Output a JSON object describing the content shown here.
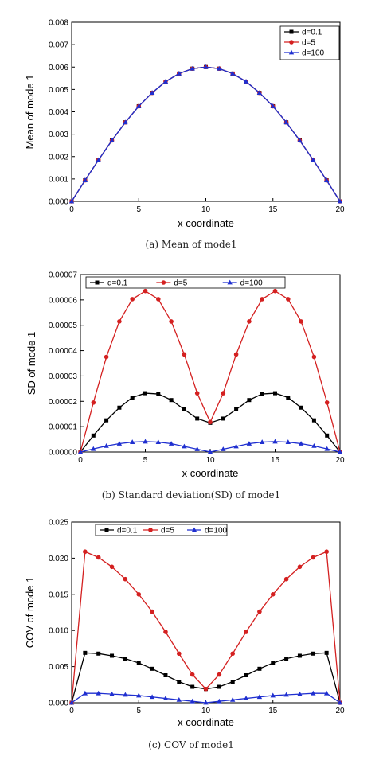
{
  "colors": {
    "d01": "#000000",
    "d5": "#d42020",
    "d100": "#1f2fd0"
  },
  "chart_data": [
    {
      "type": "line",
      "caption": "(a) Mean of mode1",
      "xlabel": "x coordinate",
      "ylabel": "Mean of mode 1",
      "xlim": [
        0,
        20
      ],
      "ylim": [
        0,
        0.008
      ],
      "x_ticks": [
        "0",
        "5",
        "10",
        "15",
        "20"
      ],
      "y_ticks": [
        "0.000",
        "0.001",
        "0.002",
        "0.003",
        "0.004",
        "0.005",
        "0.006",
        "0.007",
        "0.008"
      ],
      "legend_position": "top-right",
      "x": [
        0,
        1,
        2,
        3,
        4,
        5,
        6,
        7,
        8,
        9,
        10,
        11,
        12,
        13,
        14,
        15,
        16,
        17,
        18,
        19,
        20
      ],
      "series": [
        {
          "name": "d=0.1",
          "marker": "square",
          "values": [
            0,
            0.00094,
            0.00185,
            0.00272,
            0.00353,
            0.00425,
            0.00485,
            0.00535,
            0.00571,
            0.00593,
            0.006,
            0.00593,
            0.00571,
            0.00535,
            0.00485,
            0.00425,
            0.00353,
            0.00272,
            0.00185,
            0.00094,
            0
          ]
        },
        {
          "name": "d=5",
          "marker": "circle",
          "values": [
            0,
            0.00094,
            0.00185,
            0.00272,
            0.00353,
            0.00425,
            0.00485,
            0.00535,
            0.00571,
            0.00593,
            0.006,
            0.00593,
            0.00571,
            0.00535,
            0.00485,
            0.00425,
            0.00353,
            0.00272,
            0.00185,
            0.00094,
            0
          ]
        },
        {
          "name": "d=100",
          "marker": "triangle",
          "values": [
            0,
            0.00094,
            0.00185,
            0.00272,
            0.00353,
            0.00425,
            0.00485,
            0.00535,
            0.00571,
            0.00593,
            0.006,
            0.00593,
            0.00571,
            0.00535,
            0.00485,
            0.00425,
            0.00353,
            0.00272,
            0.00185,
            0.00094,
            0
          ]
        }
      ]
    },
    {
      "type": "line",
      "caption": "(b) Standard deviation(SD) of mode1",
      "xlabel": "x coordinate",
      "ylabel": "SD of mode 1",
      "xlim": [
        0,
        20
      ],
      "ylim": [
        0,
        7e-05
      ],
      "x_ticks": [
        "0",
        "5",
        "10",
        "15",
        "20"
      ],
      "y_ticks": [
        "0.00000",
        "0.00001",
        "0.00002",
        "0.00003",
        "0.00004",
        "0.00005",
        "0.00006",
        "0.00007"
      ],
      "legend_position": "top-left",
      "x": [
        0,
        1,
        2,
        3,
        4,
        5,
        6,
        7,
        8,
        9,
        10,
        11,
        12,
        13,
        14,
        15,
        16,
        17,
        18,
        19,
        20
      ],
      "series": [
        {
          "name": "d=0.1",
          "marker": "square",
          "values": [
            0,
            6.5e-06,
            1.25e-05,
            1.75e-05,
            2.15e-05,
            2.32e-05,
            2.29e-05,
            2.05e-05,
            1.68e-05,
            1.32e-05,
            1.15e-05,
            1.32e-05,
            1.68e-05,
            2.05e-05,
            2.29e-05,
            2.32e-05,
            2.15e-05,
            1.75e-05,
            1.25e-05,
            6.5e-06,
            0
          ]
        },
        {
          "name": "d=5",
          "marker": "circle",
          "values": [
            0,
            1.95e-05,
            3.75e-05,
            5.15e-05,
            6.03e-05,
            6.35e-05,
            6.03e-05,
            5.15e-05,
            3.85e-05,
            2.32e-05,
            1.18e-05,
            2.32e-05,
            3.85e-05,
            5.15e-05,
            6.03e-05,
            6.35e-05,
            6.03e-05,
            5.15e-05,
            3.75e-05,
            1.95e-05,
            0
          ]
        },
        {
          "name": "d=100",
          "marker": "triangle",
          "values": [
            0,
            1.2e-06,
            2.4e-06,
            3.3e-06,
            3.9e-06,
            4.1e-06,
            3.9e-06,
            3.3e-06,
            2.2e-06,
            1.1e-06,
            0,
            1.1e-06,
            2.2e-06,
            3.3e-06,
            3.9e-06,
            4.1e-06,
            3.9e-06,
            3.3e-06,
            2.4e-06,
            1.2e-06,
            0
          ]
        }
      ]
    },
    {
      "type": "line",
      "caption": "(c) COV of mode1",
      "xlabel": "x coordinate",
      "ylabel": "COV of mode 1",
      "xlim": [
        0,
        20
      ],
      "ylim": [
        0,
        0.025
      ],
      "x_ticks": [
        "0",
        "5",
        "10",
        "15",
        "20"
      ],
      "y_ticks": [
        "0.000",
        "0.005",
        "0.010",
        "0.015",
        "0.020",
        "0.025"
      ],
      "legend_position": "top-left",
      "x": [
        0,
        1,
        2,
        3,
        4,
        5,
        6,
        7,
        8,
        9,
        10,
        11,
        12,
        13,
        14,
        15,
        16,
        17,
        18,
        19,
        20
      ],
      "series": [
        {
          "name": "d=0.1",
          "marker": "square",
          "values": [
            0,
            0.0069,
            0.0068,
            0.0065,
            0.0061,
            0.0055,
            0.0047,
            0.0038,
            0.0029,
            0.0022,
            0.0019,
            0.0022,
            0.0029,
            0.0038,
            0.0047,
            0.0055,
            0.0061,
            0.0065,
            0.0068,
            0.0069,
            0
          ]
        },
        {
          "name": "d=5",
          "marker": "circle",
          "values": [
            0,
            0.0209,
            0.0201,
            0.0188,
            0.0171,
            0.015,
            0.0126,
            0.0098,
            0.0068,
            0.0039,
            0.0019,
            0.0039,
            0.0068,
            0.0098,
            0.0126,
            0.015,
            0.0171,
            0.0188,
            0.0201,
            0.0209,
            0
          ]
        },
        {
          "name": "d=100",
          "marker": "triangle",
          "values": [
            0,
            0.0013,
            0.0013,
            0.0012,
            0.0011,
            0.001,
            0.0008,
            0.0006,
            0.0004,
            0.0002,
            0,
            0.0002,
            0.0004,
            0.0006,
            0.0008,
            0.001,
            0.0011,
            0.0012,
            0.0013,
            0.0013,
            0
          ]
        }
      ]
    }
  ]
}
